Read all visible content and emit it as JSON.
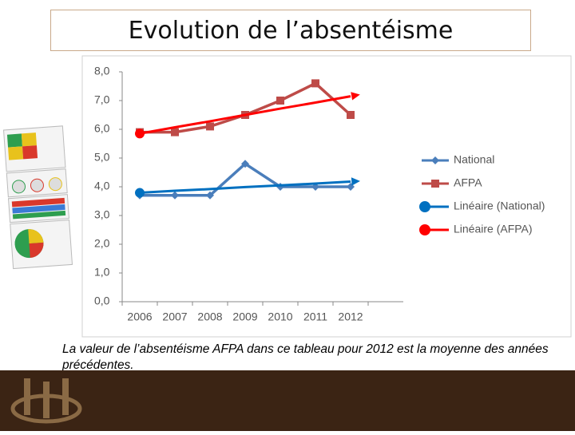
{
  "chart_data": {
    "type": "line",
    "title": "Evolution de l’absentéisme",
    "caption": "La valeur de l’absentéisme AFPA dans ce tableau pour 2012 est la moyenne des années précédentes.",
    "categories": [
      "2006",
      "2007",
      "2008",
      "2009",
      "2010",
      "2011",
      "2012"
    ],
    "series": [
      {
        "name": "National",
        "color": "#4a7ebb",
        "marker": "diamond",
        "values": [
          3.7,
          3.7,
          3.7,
          4.8,
          4.0,
          4.0,
          4.0
        ]
      },
      {
        "name": "AFPA",
        "color": "#be4b48",
        "marker": "square",
        "values": [
          5.9,
          5.9,
          6.1,
          6.5,
          7.0,
          7.6,
          6.5
        ]
      },
      {
        "name": "Linéaire (National)",
        "color": "#0070c0",
        "marker": "trend",
        "values": [
          3.79,
          3.86,
          3.92,
          3.99,
          4.05,
          4.11,
          4.18
        ]
      },
      {
        "name": "Linéaire (AFPA)",
        "color": "#ff0000",
        "marker": "trend",
        "values": [
          5.85,
          6.07,
          6.28,
          6.5,
          6.72,
          6.93,
          7.15
        ]
      }
    ],
    "ylim": [
      0,
      8
    ],
    "yticks": [
      {
        "value": 0,
        "label": "0,0"
      },
      {
        "value": 1,
        "label": "1,0"
      },
      {
        "value": 2,
        "label": "2,0"
      },
      {
        "value": 3,
        "label": "3,0"
      },
      {
        "value": 4,
        "label": "4,0"
      },
      {
        "value": 5,
        "label": "5,0"
      },
      {
        "value": 6,
        "label": "6,0"
      },
      {
        "value": 7,
        "label": "7,0"
      },
      {
        "value": 8,
        "label": "8,0"
      }
    ],
    "grid": false,
    "legend": "right"
  }
}
